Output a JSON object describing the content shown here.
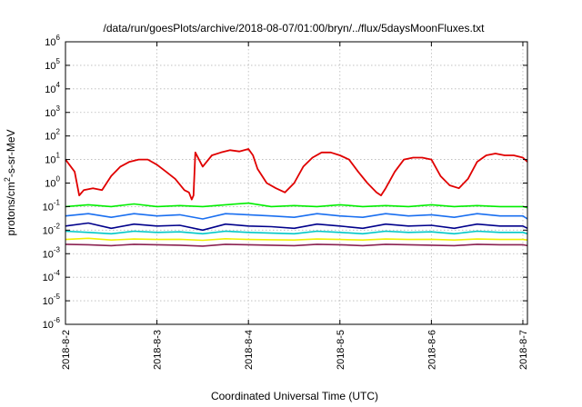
{
  "chart_data": {
    "type": "line",
    "title": "/data/run/goesPlots/archive/2018-08-07/01:00/bryn/../flux/5daysMoonFluxes.txt",
    "xlabel": "Coordinated Universal Time (UTC)",
    "ylabel_parts": [
      "protons/cm",
      "2",
      "-s-sr-MeV"
    ],
    "y_scale": "log",
    "ylim": [
      1e-06,
      1000000.0
    ],
    "xlim_days": [
      0,
      5.05
    ],
    "grid": true,
    "x_ticks": [
      {
        "label": "2018-8-2",
        "value": 0
      },
      {
        "label": "2018-8-3",
        "value": 1
      },
      {
        "label": "2018-8-4",
        "value": 2
      },
      {
        "label": "2018-8-5",
        "value": 3
      },
      {
        "label": "2018-8-6",
        "value": 4
      },
      {
        "label": "2018-8-7",
        "value": 5
      }
    ],
    "y_ticks": [
      {
        "base": "10",
        "exp": "6",
        "value": 6
      },
      {
        "base": "10",
        "exp": "5",
        "value": 5
      },
      {
        "base": "10",
        "exp": "4",
        "value": 4
      },
      {
        "base": "10",
        "exp": "3",
        "value": 3
      },
      {
        "base": "10",
        "exp": "2",
        "value": 2
      },
      {
        "base": "10",
        "exp": "1",
        "value": 1
      },
      {
        "base": "10",
        "exp": "0",
        "value": 0
      },
      {
        "base": "10",
        "exp": "-1",
        "value": -1
      },
      {
        "base": "10",
        "exp": "-2",
        "value": -2
      },
      {
        "base": "10",
        "exp": "-3",
        "value": -3
      },
      {
        "base": "10",
        "exp": "-4",
        "value": -4
      },
      {
        "base": "10",
        "exp": "-5",
        "value": -5
      },
      {
        "base": "10",
        "exp": "-6",
        "value": -6
      }
    ],
    "series": [
      {
        "color": "#e00000",
        "x": [
          0.0,
          0.1,
          0.15,
          0.2,
          0.3,
          0.4,
          0.5,
          0.6,
          0.7,
          0.8,
          0.9,
          1.0,
          1.1,
          1.2,
          1.3,
          1.35,
          1.38,
          1.4,
          1.42,
          1.5,
          1.6,
          1.7,
          1.8,
          1.9,
          2.0,
          2.05,
          2.1,
          2.2,
          2.3,
          2.4,
          2.5,
          2.6,
          2.7,
          2.8,
          2.9,
          3.0,
          3.1,
          3.2,
          3.3,
          3.4,
          3.45,
          3.5,
          3.6,
          3.7,
          3.8,
          3.9,
          4.0,
          4.1,
          4.2,
          4.3,
          4.4,
          4.5,
          4.6,
          4.7,
          4.8,
          4.9,
          5.0,
          5.05
        ],
        "y": [
          10,
          3,
          0.3,
          0.5,
          0.6,
          0.5,
          2,
          5,
          8,
          10,
          10,
          6,
          3,
          1.5,
          0.5,
          0.4,
          0.2,
          0.3,
          20,
          5,
          15,
          20,
          25,
          22,
          28,
          15,
          4,
          1,
          0.6,
          0.4,
          1,
          5,
          12,
          20,
          20,
          15,
          10,
          3,
          1,
          0.4,
          0.3,
          0.6,
          3,
          10,
          12,
          12,
          10,
          2,
          0.8,
          0.6,
          1.5,
          8,
          15,
          18,
          15,
          15,
          12,
          8
        ]
      },
      {
        "color": "#00ee00",
        "x": [
          0.0,
          0.25,
          0.5,
          0.75,
          1.0,
          1.25,
          1.5,
          1.75,
          2.0,
          2.25,
          2.5,
          2.75,
          3.0,
          3.25,
          3.5,
          3.75,
          4.0,
          4.25,
          4.5,
          4.75,
          5.0,
          5.05
        ],
        "y": [
          0.1,
          0.12,
          0.1,
          0.13,
          0.1,
          0.11,
          0.1,
          0.12,
          0.14,
          0.1,
          0.11,
          0.1,
          0.12,
          0.1,
          0.11,
          0.1,
          0.12,
          0.1,
          0.11,
          0.1,
          0.1,
          0.09
        ]
      },
      {
        "color": "#1a6ff0",
        "x": [
          0.0,
          0.25,
          0.5,
          0.75,
          1.0,
          1.25,
          1.5,
          1.75,
          2.0,
          2.25,
          2.5,
          2.75,
          3.0,
          3.25,
          3.5,
          3.75,
          4.0,
          4.25,
          4.5,
          4.75,
          5.0,
          5.05
        ],
        "y": [
          0.04,
          0.05,
          0.035,
          0.05,
          0.04,
          0.045,
          0.03,
          0.05,
          0.045,
          0.04,
          0.035,
          0.05,
          0.04,
          0.035,
          0.05,
          0.04,
          0.045,
          0.035,
          0.05,
          0.04,
          0.04,
          0.03
        ]
      },
      {
        "color": "#00008b",
        "x": [
          0.0,
          0.25,
          0.5,
          0.75,
          1.0,
          1.25,
          1.5,
          1.75,
          2.0,
          2.25,
          2.5,
          2.75,
          3.0,
          3.25,
          3.5,
          3.75,
          4.0,
          4.25,
          4.5,
          4.75,
          5.0,
          5.05
        ],
        "y": [
          0.015,
          0.02,
          0.012,
          0.018,
          0.015,
          0.016,
          0.01,
          0.018,
          0.015,
          0.014,
          0.012,
          0.018,
          0.015,
          0.012,
          0.018,
          0.015,
          0.016,
          0.012,
          0.018,
          0.015,
          0.015,
          0.012
        ]
      },
      {
        "color": "#00c8c8",
        "x": [
          0.0,
          0.25,
          0.5,
          0.75,
          1.0,
          1.25,
          1.5,
          1.75,
          2.0,
          2.25,
          2.5,
          2.75,
          3.0,
          3.25,
          3.5,
          3.75,
          4.0,
          4.25,
          4.5,
          4.75,
          5.0,
          5.05
        ],
        "y": [
          0.009,
          0.008,
          0.007,
          0.009,
          0.008,
          0.0085,
          0.007,
          0.009,
          0.008,
          0.0075,
          0.007,
          0.009,
          0.008,
          0.007,
          0.009,
          0.008,
          0.0085,
          0.007,
          0.009,
          0.008,
          0.008,
          0.007
        ]
      },
      {
        "color": "#f0f000",
        "x": [
          0.0,
          0.25,
          0.5,
          0.75,
          1.0,
          1.25,
          1.5,
          1.75,
          2.0,
          2.25,
          2.5,
          2.75,
          3.0,
          3.25,
          3.5,
          3.75,
          4.0,
          4.25,
          4.5,
          4.75,
          5.0,
          5.05
        ],
        "y": [
          0.004,
          0.0045,
          0.0038,
          0.0042,
          0.004,
          0.0041,
          0.0037,
          0.0043,
          0.004,
          0.0039,
          0.0038,
          0.0042,
          0.004,
          0.0038,
          0.0042,
          0.004,
          0.0041,
          0.0038,
          0.0042,
          0.004,
          0.004,
          0.0038
        ]
      },
      {
        "color": "#8b2252",
        "x": [
          0.0,
          0.25,
          0.5,
          0.75,
          1.0,
          1.25,
          1.5,
          1.75,
          2.0,
          2.25,
          2.5,
          2.75,
          3.0,
          3.25,
          3.5,
          3.75,
          4.0,
          4.25,
          4.5,
          4.75,
          5.0,
          5.05
        ],
        "y": [
          0.0025,
          0.0024,
          0.0022,
          0.0025,
          0.0024,
          0.0023,
          0.0021,
          0.0025,
          0.0024,
          0.0023,
          0.0022,
          0.0025,
          0.0024,
          0.0022,
          0.0025,
          0.0024,
          0.0023,
          0.0022,
          0.0025,
          0.0024,
          0.0024,
          0.0022
        ]
      }
    ]
  }
}
